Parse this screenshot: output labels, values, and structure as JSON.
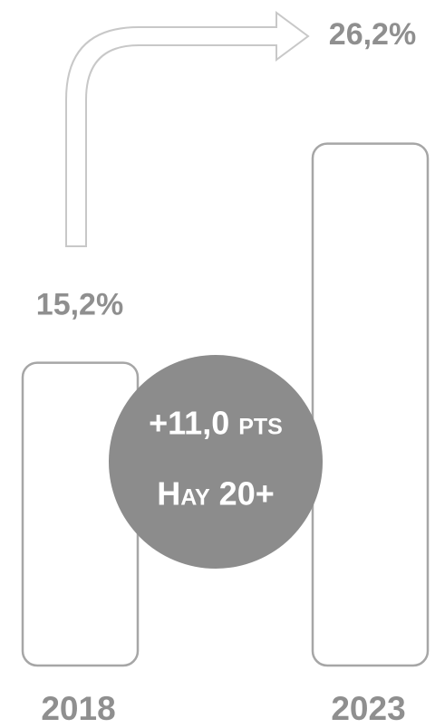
{
  "chart_data": {
    "type": "bar",
    "categories": [
      "2018",
      "2023"
    ],
    "values": [
      15.2,
      26.2
    ],
    "value_labels": [
      "15,2%",
      "26,2%"
    ],
    "color": "#a6a6a6",
    "annotations": [
      "+11,0 pts",
      "Hay 20+"
    ],
    "annotation_color": "#8c8c8c"
  }
}
